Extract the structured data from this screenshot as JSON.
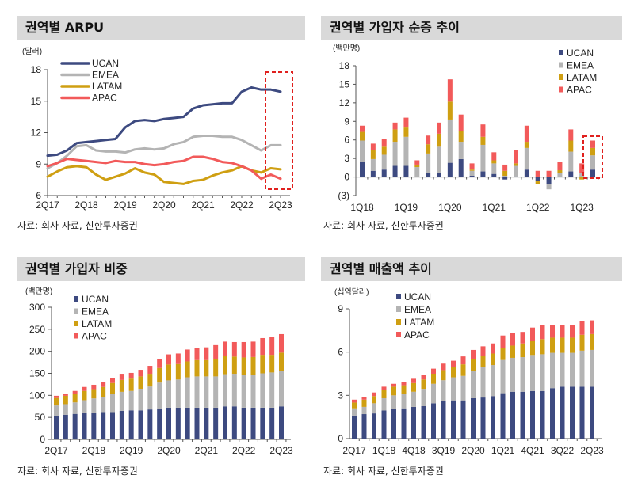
{
  "colors": {
    "UCAN": "#3d4a80",
    "EMEA": "#b4b4b4",
    "LATAM": "#cf9f12",
    "APAC": "#f25a5a",
    "highlight": "#e0201e"
  },
  "source_text": "자료: 회사 자료, 신한투자증권",
  "chart_data": [
    {
      "type": "line",
      "title": "권역별 ARPU",
      "unit": "(달러)",
      "ylim": [
        6,
        18
      ],
      "yticks": [
        "6",
        "9",
        "12",
        "15",
        "18"
      ],
      "ytick_values": [
        6,
        9,
        12,
        15,
        18
      ],
      "x": [
        "2Q17",
        "3Q17",
        "4Q17",
        "1Q18",
        "2Q18",
        "3Q18",
        "4Q18",
        "1Q19",
        "2Q19",
        "3Q19",
        "4Q19",
        "1Q20",
        "2Q20",
        "3Q20",
        "4Q20",
        "1Q21",
        "2Q21",
        "3Q21",
        "4Q21",
        "1Q22",
        "2Q22",
        "3Q22",
        "4Q22",
        "1Q23",
        "2Q23"
      ],
      "xtick_labels": [
        "2Q17",
        "2Q18",
        "2Q19",
        "2Q20",
        "2Q21",
        "2Q22",
        "2Q23"
      ],
      "legend": "top-left",
      "highlight": "last 3 quarters (3Q22–2Q23)",
      "series": [
        {
          "name": "UCAN",
          "values": [
            9.8,
            9.9,
            10.3,
            11.0,
            11.1,
            11.2,
            11.3,
            11.4,
            12.5,
            13.1,
            13.2,
            13.1,
            13.3,
            13.4,
            13.5,
            14.3,
            14.6,
            14.7,
            14.8,
            14.8,
            15.9,
            16.3,
            16.1,
            16.1,
            15.9
          ]
        },
        {
          "name": "EMEA",
          "values": [
            8.6,
            9.1,
            9.8,
            10.7,
            10.8,
            10.3,
            10.2,
            10.2,
            10.1,
            10.4,
            10.5,
            10.4,
            10.5,
            10.9,
            11.1,
            11.6,
            11.7,
            11.7,
            11.6,
            11.6,
            11.3,
            10.8,
            10.3,
            10.8,
            10.8
          ]
        },
        {
          "name": "LATAM",
          "values": [
            7.8,
            8.3,
            8.7,
            8.8,
            8.7,
            8.0,
            7.5,
            7.8,
            8.1,
            8.6,
            8.2,
            8.0,
            7.3,
            7.2,
            7.1,
            7.4,
            7.5,
            7.9,
            8.2,
            8.4,
            8.8,
            8.4,
            8.2,
            8.6,
            8.5
          ]
        },
        {
          "name": "APAC",
          "values": [
            8.8,
            9.1,
            9.5,
            9.4,
            9.3,
            9.2,
            9.1,
            9.3,
            9.2,
            9.2,
            9.0,
            8.9,
            9.0,
            9.2,
            9.3,
            9.7,
            9.7,
            9.5,
            9.2,
            9.1,
            8.8,
            8.4,
            7.6,
            8.0,
            7.6
          ]
        }
      ]
    },
    {
      "type": "bar",
      "stacked": true,
      "title": "권역별 가입자 순증 추이",
      "unit": "(백만명)",
      "ylim": [
        -3,
        18
      ],
      "yticks": [
        "(3)",
        "0",
        "3",
        "6",
        "9",
        "12",
        "15",
        "18"
      ],
      "ytick_values": [
        -3,
        0,
        3,
        6,
        9,
        12,
        15,
        18
      ],
      "categories": [
        "1Q18",
        "2Q18",
        "3Q18",
        "4Q18",
        "1Q19",
        "2Q19",
        "3Q19",
        "4Q19",
        "1Q20",
        "2Q20",
        "3Q20",
        "4Q20",
        "1Q21",
        "2Q21",
        "3Q21",
        "4Q21",
        "1Q22",
        "2Q22",
        "3Q22",
        "4Q22",
        "1Q23",
        "2Q23"
      ],
      "xtick_labels": [
        "1Q18",
        "1Q19",
        "1Q20",
        "1Q21",
        "1Q22",
        "1Q23"
      ],
      "legend": "top-right",
      "highlight": "2Q23",
      "series": [
        {
          "name": "UCAN",
          "values": [
            2.5,
            1.0,
            1.2,
            1.8,
            1.8,
            0.0,
            0.7,
            0.6,
            2.3,
            2.9,
            0.2,
            0.9,
            0.5,
            -0.4,
            0.1,
            1.2,
            -0.7,
            -1.2,
            0.0,
            0.9,
            0.0,
            1.2
          ]
        },
        {
          "name": "EMEA",
          "values": [
            3.4,
            1.9,
            2.4,
            3.9,
            4.7,
            1.6,
            3.1,
            4.3,
            7.0,
            2.8,
            0.8,
            4.3,
            1.7,
            0.2,
            1.7,
            3.5,
            0.0,
            -0.8,
            0.7,
            3.2,
            0.7,
            2.3
          ]
        },
        {
          "name": "LATAM",
          "values": [
            1.4,
            1.5,
            1.3,
            2.0,
            1.5,
            0.4,
            1.5,
            2.1,
            2.9,
            1.8,
            0.2,
            1.3,
            0.5,
            0.8,
            0.4,
            1.0,
            -0.4,
            0.0,
            0.4,
            1.8,
            -0.4,
            1.2
          ]
        },
        {
          "name": "APAC",
          "values": [
            1.0,
            1.0,
            1.2,
            1.1,
            1.6,
            0.7,
            1.4,
            1.8,
            3.6,
            2.6,
            1.0,
            2.0,
            1.3,
            1.0,
            2.2,
            2.6,
            1.0,
            1.0,
            1.4,
            1.8,
            1.5,
            1.2
          ]
        }
      ]
    },
    {
      "type": "bar",
      "stacked": true,
      "title": "권역별 가입자 비중",
      "unit": "(백만명)",
      "ylim": [
        0,
        300
      ],
      "yticks": [
        "0",
        "50",
        "100",
        "150",
        "200",
        "250",
        "300"
      ],
      "ytick_values": [
        0,
        50,
        100,
        150,
        200,
        250,
        300
      ],
      "categories": [
        "2Q17",
        "3Q17",
        "4Q17",
        "1Q18",
        "2Q18",
        "3Q18",
        "4Q18",
        "1Q19",
        "2Q19",
        "3Q19",
        "4Q19",
        "1Q20",
        "2Q20",
        "3Q20",
        "4Q20",
        "1Q21",
        "2Q21",
        "3Q21",
        "4Q21",
        "1Q22",
        "2Q22",
        "3Q22",
        "4Q22",
        "1Q23",
        "2Q23"
      ],
      "xtick_labels": [
        "2Q17",
        "2Q18",
        "2Q19",
        "2Q20",
        "2Q21",
        "2Q22",
        "2Q23"
      ],
      "legend": "top-left",
      "series": [
        {
          "name": "UCAN",
          "values": [
            54,
            56,
            58,
            60,
            61,
            62,
            62,
            65,
            66,
            66,
            68,
            70,
            72,
            72,
            72,
            72,
            72,
            72,
            75,
            75,
            72,
            72,
            72,
            72,
            75
          ]
        },
        {
          "name": "EMEA",
          "values": [
            23,
            24,
            26,
            29,
            32,
            34,
            41,
            43,
            44,
            49,
            52,
            59,
            62,
            64,
            69,
            71,
            71,
            71,
            73,
            74,
            74,
            74,
            78,
            80,
            80
          ]
        },
        {
          "name": "LATAM",
          "values": [
            17,
            19,
            20,
            21,
            21,
            23,
            25,
            27,
            28,
            28,
            29,
            33,
            36,
            35,
            36,
            37,
            37,
            39,
            42,
            39,
            40,
            41,
            42,
            40,
            42
          ]
        },
        {
          "name": "APAC",
          "values": [
            5,
            5,
            6,
            9,
            10,
            11,
            11,
            14,
            13,
            15,
            18,
            21,
            23,
            24,
            27,
            27,
            29,
            32,
            32,
            33,
            35,
            35,
            38,
            40,
            42
          ]
        }
      ]
    },
    {
      "type": "bar",
      "stacked": true,
      "title": "권역별 매출액 추이",
      "unit": "(십억달러)",
      "ylim": [
        0,
        9
      ],
      "yticks": [
        "0",
        "3",
        "6",
        "9"
      ],
      "ytick_values": [
        0,
        3,
        6,
        9
      ],
      "categories": [
        "2Q17",
        "3Q17",
        "4Q17",
        "1Q18",
        "2Q18",
        "3Q18",
        "4Q18",
        "1Q19",
        "2Q19",
        "3Q19",
        "4Q19",
        "1Q20",
        "2Q20",
        "3Q20",
        "4Q20",
        "1Q21",
        "2Q21",
        "3Q21",
        "4Q21",
        "1Q22",
        "2Q22",
        "3Q22",
        "4Q22",
        "1Q23",
        "2Q23"
      ],
      "xtick_labels": [
        "2Q17",
        "1Q18",
        "4Q18",
        "3Q19",
        "2Q20",
        "1Q21",
        "4Q21",
        "3Q22",
        "2Q23"
      ],
      "legend": "top-left",
      "series": [
        {
          "name": "UCAN",
          "values": [
            1.6,
            1.7,
            1.75,
            1.95,
            2.05,
            2.1,
            2.2,
            2.25,
            2.45,
            2.6,
            2.65,
            2.65,
            2.8,
            2.85,
            2.95,
            3.15,
            3.25,
            3.25,
            3.3,
            3.3,
            3.5,
            3.6,
            3.6,
            3.6,
            3.6
          ]
        },
        {
          "name": "EMEA",
          "values": [
            0.5,
            0.5,
            0.7,
            0.85,
            0.95,
            1.0,
            1.05,
            1.2,
            1.35,
            1.45,
            1.6,
            1.7,
            1.9,
            2.1,
            2.15,
            2.3,
            2.35,
            2.4,
            2.5,
            2.55,
            2.45,
            2.35,
            2.35,
            2.5,
            2.55
          ]
        },
        {
          "name": "LATAM",
          "values": [
            0.4,
            0.5,
            0.5,
            0.6,
            0.6,
            0.6,
            0.6,
            0.65,
            0.7,
            0.7,
            0.7,
            0.8,
            0.8,
            0.8,
            0.8,
            0.85,
            0.85,
            0.95,
            0.95,
            1.05,
            1.05,
            1.05,
            1.05,
            1.1,
            1.1
          ]
        },
        {
          "name": "APAC",
          "values": [
            0.2,
            0.2,
            0.25,
            0.2,
            0.2,
            0.2,
            0.3,
            0.3,
            0.35,
            0.45,
            0.45,
            0.55,
            0.65,
            0.65,
            0.7,
            0.85,
            0.85,
            0.8,
            0.95,
            0.95,
            0.9,
            0.9,
            0.85,
            0.95,
            0.95
          ]
        }
      ]
    }
  ]
}
